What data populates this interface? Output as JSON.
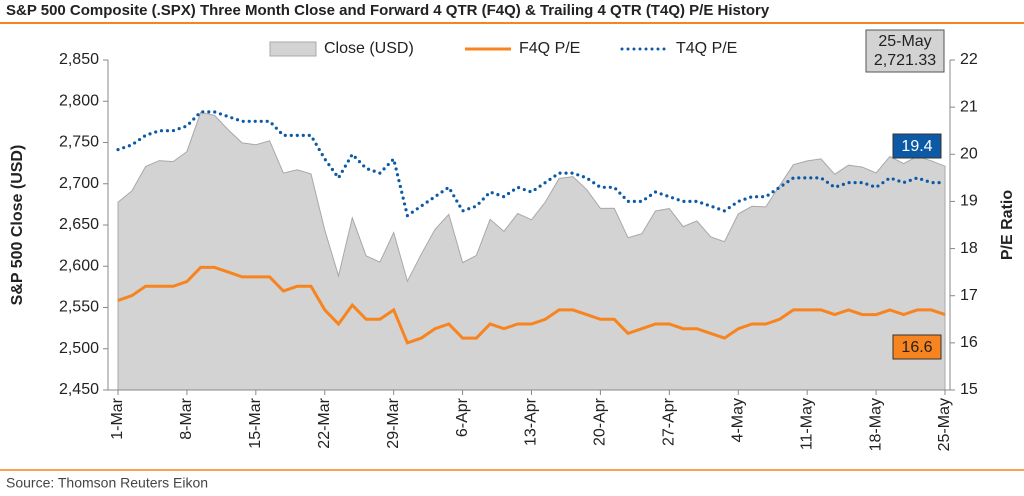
{
  "chart_data": {
    "type": "area-line",
    "title": "S&P 500 Composite (.SPX) Three Month Close and Forward 4 QTR (F4Q) & Trailing 4 QTR (T4Q) P/E History",
    "source": "Source: Thomson Reuters Eikon",
    "ylabel": "S&P 500 Close (USD)",
    "y2label": "P/E Ratio",
    "categories": [
      "1-Mar",
      null,
      null,
      null,
      null,
      "8-Mar",
      null,
      null,
      null,
      null,
      "15-Mar",
      null,
      null,
      null,
      null,
      "22-Mar",
      null,
      null,
      null,
      null,
      "29-Mar",
      null,
      null,
      null,
      null,
      "6-Apr",
      null,
      null,
      null,
      null,
      "13-Apr",
      null,
      null,
      null,
      null,
      "20-Apr",
      null,
      null,
      null,
      null,
      "27-Apr",
      null,
      null,
      null,
      null,
      "4-May",
      null,
      null,
      null,
      null,
      "11-May",
      null,
      null,
      null,
      null,
      "18-May",
      null,
      null,
      null,
      null,
      "25-May"
    ],
    "ylim": [
      2450,
      2850
    ],
    "yticks": [
      {
        "value": 2450,
        "label": "2,450"
      },
      {
        "value": 2500,
        "label": "2,500"
      },
      {
        "value": 2550,
        "label": "2,550"
      },
      {
        "value": 2600,
        "label": "2,600"
      },
      {
        "value": 2650,
        "label": "2,650"
      },
      {
        "value": 2700,
        "label": "2,700"
      },
      {
        "value": 2750,
        "label": "2,750"
      },
      {
        "value": 2800,
        "label": "2,800"
      },
      {
        "value": 2850,
        "label": "2,850"
      }
    ],
    "y2lim": [
      15,
      22
    ],
    "y2ticks": [
      15,
      16,
      17,
      18,
      19,
      20,
      21,
      22
    ],
    "legend": "top",
    "series": [
      {
        "name": "Close (USD)",
        "style": "area",
        "color": "#d3d3d3",
        "values": [
          2677.67,
          2691.25,
          2720.94,
          2728.12,
          2726.8,
          2738.97,
          2786.57,
          2783.02,
          2765.31,
          2749.48,
          2747.33,
          2752.01,
          2712.92,
          2716.94,
          2711.93,
          2643.69,
          2588.26,
          2658.55,
          2612.62,
          2605.0,
          2640.87,
          2581.88,
          2614.45,
          2644.69,
          2662.84,
          2604.47,
          2613.16,
          2656.87,
          2642.19,
          2663.99,
          2656.3,
          2677.84,
          2706.39,
          2708.64,
          2693.13,
          2670.14,
          2670.29,
          2634.56,
          2639.4,
          2666.94,
          2669.91,
          2648.05,
          2654.8,
          2635.67,
          2629.73,
          2663.42,
          2672.63,
          2671.92,
          2697.79,
          2723.07,
          2727.72,
          2730.13,
          2711.45,
          2722.46,
          2720.13,
          2712.97,
          2733.01,
          2724.44,
          2733.29,
          2727.76,
          2721.33
        ],
        "value_labels": [
          null,
          null,
          null,
          null,
          null,
          null,
          null,
          null,
          null,
          null,
          null,
          null,
          null,
          null,
          null,
          null,
          null,
          null,
          null,
          null,
          null,
          null,
          null,
          null,
          null,
          null,
          null,
          null,
          null,
          null,
          null,
          null,
          null,
          null,
          null,
          null,
          null,
          null,
          null,
          null,
          null,
          null,
          null,
          null,
          null,
          null,
          null,
          null,
          null,
          null,
          null,
          null,
          null,
          null,
          null,
          null,
          null,
          null,
          null,
          null,
          "2,721.33"
        ]
      },
      {
        "name": "F4Q P/E",
        "style": "solid",
        "color": "#f7841f",
        "axis": "y2",
        "values": [
          16.9,
          17.0,
          17.2,
          17.2,
          17.2,
          17.3,
          17.6,
          17.6,
          17.5,
          17.4,
          17.4,
          17.4,
          17.1,
          17.2,
          17.2,
          16.7,
          16.4,
          16.8,
          16.5,
          16.5,
          16.7,
          16.0,
          16.1,
          16.3,
          16.4,
          16.1,
          16.1,
          16.4,
          16.3,
          16.4,
          16.4,
          16.5,
          16.7,
          16.7,
          16.6,
          16.5,
          16.5,
          16.2,
          16.3,
          16.4,
          16.4,
          16.3,
          16.3,
          16.2,
          16.1,
          16.3,
          16.4,
          16.4,
          16.5,
          16.7,
          16.7,
          16.7,
          16.6,
          16.7,
          16.6,
          16.6,
          16.7,
          16.6,
          16.7,
          16.7,
          16.6
        ]
      },
      {
        "name": "T4Q P/E",
        "style": "dotted",
        "color": "#0c5aa6",
        "axis": "y2",
        "values": [
          20.1,
          20.2,
          20.4,
          20.5,
          20.5,
          20.6,
          20.9,
          20.9,
          20.8,
          20.7,
          20.7,
          20.7,
          20.4,
          20.4,
          20.4,
          19.9,
          19.5,
          20.0,
          19.7,
          19.6,
          19.9,
          18.7,
          18.9,
          19.1,
          19.3,
          18.8,
          18.9,
          19.2,
          19.1,
          19.3,
          19.2,
          19.4,
          19.6,
          19.6,
          19.5,
          19.3,
          19.3,
          19.0,
          19.0,
          19.2,
          19.1,
          19.0,
          19.0,
          18.9,
          18.8,
          19.0,
          19.1,
          19.1,
          19.3,
          19.5,
          19.5,
          19.5,
          19.3,
          19.4,
          19.4,
          19.3,
          19.5,
          19.4,
          19.5,
          19.4,
          19.4
        ]
      }
    ]
  }
}
